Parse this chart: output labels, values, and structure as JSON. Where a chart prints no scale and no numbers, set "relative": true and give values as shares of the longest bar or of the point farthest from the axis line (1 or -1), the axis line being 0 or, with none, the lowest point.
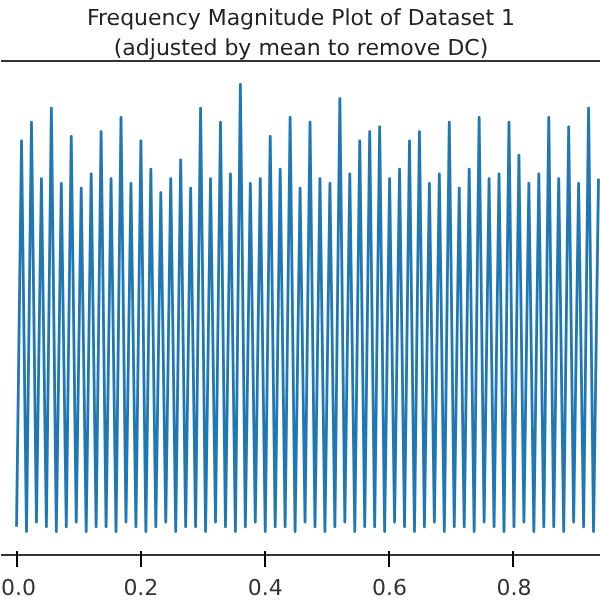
{
  "chart_data": {
    "type": "line",
    "title": "Frequency Magnitude Plot of Dataset 1",
    "subtitle": "(adjusted by mean to remove DC)",
    "relative": true,
    "color": "#1f77b4",
    "grid": false,
    "xlim": [
      -0.025,
      0.94
    ],
    "xticks": [
      {
        "value": 0,
        "label": "0.0"
      },
      {
        "value": 0.2,
        "label": "0.2"
      },
      {
        "value": 0.4,
        "label": "0.4"
      },
      {
        "value": 0.6,
        "label": "0.6"
      },
      {
        "value": 0.8,
        "label": "0.8"
      }
    ],
    "x": [
      0.0,
      0.008,
      0.016,
      0.024,
      0.032,
      0.04,
      0.048,
      0.056,
      0.064,
      0.072,
      0.08,
      0.088,
      0.096,
      0.104,
      0.112,
      0.12,
      0.128,
      0.136,
      0.144,
      0.152,
      0.16,
      0.168,
      0.176,
      0.184,
      0.192,
      0.2,
      0.208,
      0.216,
      0.224,
      0.232,
      0.24,
      0.248,
      0.256,
      0.264,
      0.272,
      0.28,
      0.288,
      0.296,
      0.304,
      0.312,
      0.32,
      0.328,
      0.336,
      0.344,
      0.352,
      0.36,
      0.368,
      0.376,
      0.384,
      0.392,
      0.4,
      0.408,
      0.416,
      0.424,
      0.432,
      0.44,
      0.448,
      0.456,
      0.464,
      0.472,
      0.48,
      0.488,
      0.496,
      0.504,
      0.512,
      0.52,
      0.528,
      0.536,
      0.544,
      0.552,
      0.56,
      0.568,
      0.576,
      0.584,
      0.592,
      0.6,
      0.608,
      0.616,
      0.624,
      0.632,
      0.64,
      0.648,
      0.656,
      0.664,
      0.672,
      0.68,
      0.688,
      0.696,
      0.704,
      0.712,
      0.72,
      0.728,
      0.736,
      0.744,
      0.752,
      0.76,
      0.768,
      0.776,
      0.784,
      0.792,
      0.8,
      0.808,
      0.816,
      0.824,
      0.832,
      0.84,
      0.848,
      0.856,
      0.864,
      0.872,
      0.88,
      0.888,
      0.896,
      0.904,
      0.912,
      0.92,
      0.928,
      0.936
    ],
    "values": [
      0.06,
      0.88,
      0.05,
      0.92,
      0.07,
      0.8,
      0.06,
      0.95,
      0.05,
      0.79,
      0.06,
      0.89,
      0.07,
      0.78,
      0.05,
      0.81,
      0.06,
      0.9,
      0.06,
      0.8,
      0.05,
      0.93,
      0.07,
      0.79,
      0.06,
      0.88,
      0.05,
      0.82,
      0.06,
      0.77,
      0.07,
      0.8,
      0.05,
      0.84,
      0.06,
      0.78,
      0.06,
      0.95,
      0.05,
      0.8,
      0.07,
      0.92,
      0.06,
      0.81,
      0.05,
      1.0,
      0.06,
      0.79,
      0.07,
      0.8,
      0.05,
      0.89,
      0.06,
      0.82,
      0.06,
      0.93,
      0.05,
      0.78,
      0.07,
      0.92,
      0.06,
      0.8,
      0.05,
      0.79,
      0.06,
      0.97,
      0.07,
      0.81,
      0.05,
      0.88,
      0.06,
      0.9,
      0.06,
      0.91,
      0.05,
      0.8,
      0.07,
      0.82,
      0.06,
      0.88,
      0.05,
      0.9,
      0.06,
      0.79,
      0.07,
      0.81,
      0.05,
      0.92,
      0.06,
      0.78,
      0.06,
      0.82,
      0.05,
      0.93,
      0.07,
      0.8,
      0.06,
      0.81,
      0.05,
      0.92,
      0.06,
      0.85,
      0.07,
      0.79,
      0.05,
      0.81,
      0.06,
      0.93,
      0.06,
      0.8,
      0.05,
      0.91,
      0.07,
      0.79,
      0.06,
      0.95,
      0.05,
      0.8
    ]
  }
}
